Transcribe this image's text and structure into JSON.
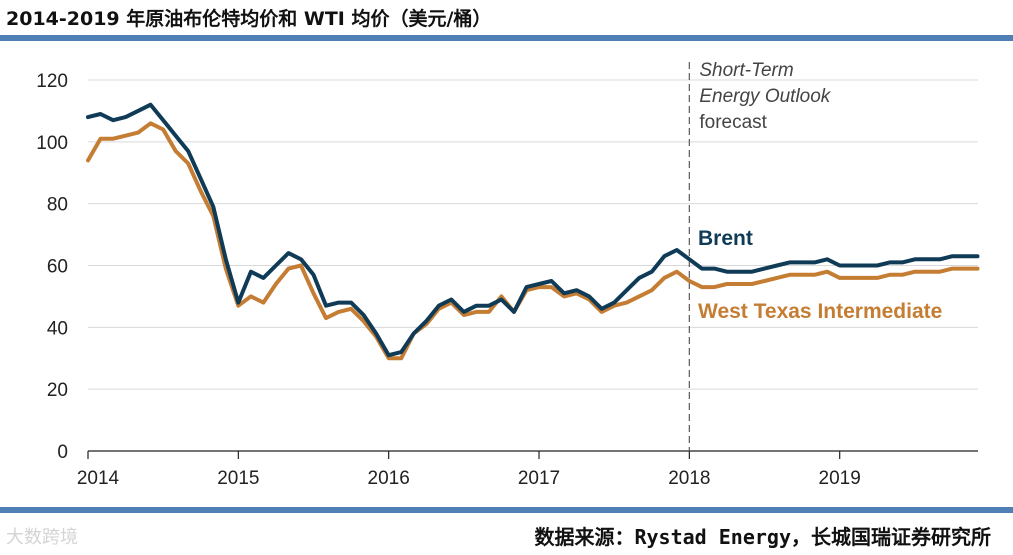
{
  "title": "2014-2019 年原油布伦特均价和 WTI 均价（美元/桶）",
  "source": "数据来源：Rystad Energy，长城国瑞证券研究所",
  "watermark": "大数跨境",
  "colors": {
    "brent": "#0f3b57",
    "wti": "#c57d33",
    "grid": "#d9d9d9",
    "rule": "#4f7fb5"
  },
  "chart_data": {
    "type": "line",
    "title": "",
    "xlabel": "",
    "ylabel": "",
    "xlim": [
      2014,
      2019.92
    ],
    "ylim": [
      0,
      120
    ],
    "yticks": [
      0,
      20,
      40,
      60,
      80,
      100,
      120
    ],
    "yticklabels": [
      "0",
      "20",
      "40",
      "60",
      "80",
      "100",
      "120"
    ],
    "xticks": [
      2014,
      2015,
      2016,
      2017,
      2018,
      2019
    ],
    "xticklabels": [
      "2014",
      "2015",
      "2016",
      "2017",
      "2018",
      "2019"
    ],
    "grid": "horizontal",
    "forecast_start": 2018,
    "annotation": [
      "Short-Term",
      "Energy Outlook",
      "forecast"
    ],
    "series": [
      {
        "name": "Brent",
        "label": "Brent",
        "color": "#0f3b57",
        "x_start": 2014,
        "x_step": 0.0833333,
        "values": [
          108,
          109,
          107,
          108,
          110,
          112,
          107,
          102,
          97,
          88,
          79,
          62,
          48,
          58,
          56,
          60,
          64,
          62,
          57,
          47,
          48,
          48,
          44,
          38,
          31,
          32,
          38,
          42,
          47,
          49,
          45,
          47,
          47,
          49,
          45,
          53,
          54,
          55,
          51,
          52,
          50,
          46,
          48,
          52,
          56,
          58,
          63,
          65,
          62,
          59,
          59,
          58,
          58,
          58,
          59,
          60,
          61,
          61,
          61,
          62,
          60,
          60,
          60,
          60,
          61,
          61,
          62,
          62,
          62,
          63,
          63,
          63
        ]
      },
      {
        "name": "West Texas Intermediate",
        "label": "West Texas Intermediate",
        "color": "#c57d33",
        "x_start": 2014,
        "x_step": 0.0833333,
        "values": [
          94,
          101,
          101,
          102,
          103,
          106,
          104,
          97,
          93,
          84,
          76,
          59,
          47,
          50,
          48,
          54,
          59,
          60,
          51,
          43,
          45,
          46,
          42,
          37,
          30,
          30,
          38,
          41,
          46,
          48,
          44,
          45,
          45,
          50,
          45,
          52,
          53,
          53,
          50,
          51,
          49,
          45,
          47,
          48,
          50,
          52,
          56,
          58,
          55,
          53,
          53,
          54,
          54,
          54,
          55,
          56,
          57,
          57,
          57,
          58,
          56,
          56,
          56,
          56,
          57,
          57,
          58,
          58,
          58,
          59,
          59,
          59
        ]
      }
    ]
  }
}
